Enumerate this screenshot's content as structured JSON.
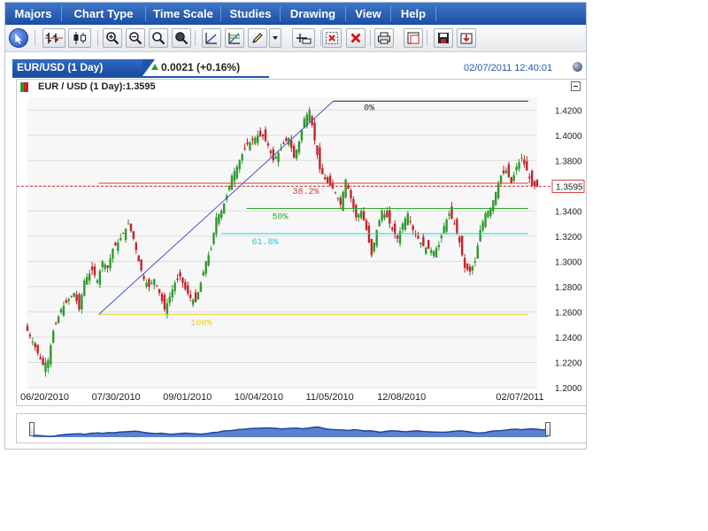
{
  "menu": [
    "Majors",
    "Chart Type",
    "Time Scale",
    "Studies",
    "Drawing",
    "View",
    "Help"
  ],
  "toolbar": {
    "buttons": [
      "pointer-icon",
      "bar-chart-icon",
      "candlestick-icon",
      "zoom-in-icon",
      "zoom-out-icon",
      "zoom-fit-icon",
      "zoom-reset-icon",
      "trendline-icon",
      "fibonacci-icon",
      "pencil-icon",
      "dropdown-arrow-icon",
      "crosshair-icon",
      "delete-drawing-icon",
      "delete-all-icon",
      "print-icon",
      "popout-icon",
      "save-icon",
      "load-icon"
    ]
  },
  "header": {
    "tab_title": "EUR/USD (1 Day)",
    "change": "0.0021 (+0.16%)",
    "timestamp": "02/07/2011 12:40:01"
  },
  "legend": "EUR / USD (1 Day):1.3595",
  "colors": {
    "accent": "#1f55ab",
    "up": "#2d9a2d",
    "down": "#c4242a",
    "trendline": "#4a56c8",
    "fib_0": "#222222",
    "fib_382": "#d04040",
    "fib_50": "#2ea82e",
    "fib_618": "#30c8c8",
    "fib_100": "#e8d020",
    "navigator_fill": "#5b82d0"
  },
  "chart_data": {
    "type": "candlestick",
    "symbol": "EUR/USD",
    "ylim": [
      1.2,
      1.43
    ],
    "y_ticks": [
      "1.4200",
      "1.4000",
      "1.3800",
      "1.3600",
      "1.3400",
      "1.3200",
      "1.3000",
      "1.2800",
      "1.2600",
      "1.2400",
      "1.2200",
      "1.2000"
    ],
    "x_ticks": [
      "06/20/2010",
      "07/30/2010",
      "09/01/2010",
      "10/04/2010",
      "11/05/2010",
      "12/08/2010",
      "02/07/2011"
    ],
    "last_price": "1.3595",
    "close_path": [
      [
        0,
        1.245
      ],
      [
        3,
        1.232
      ],
      [
        6,
        1.218
      ],
      [
        8,
        1.222
      ],
      [
        10,
        1.245
      ],
      [
        13,
        1.262
      ],
      [
        16,
        1.27
      ],
      [
        18,
        1.275
      ],
      [
        20,
        1.262
      ],
      [
        22,
        1.285
      ],
      [
        25,
        1.293
      ],
      [
        27,
        1.285
      ],
      [
        29,
        1.3
      ],
      [
        31,
        1.295
      ],
      [
        33,
        1.31
      ],
      [
        35,
        1.315
      ],
      [
        37,
        1.322
      ],
      [
        39,
        1.33
      ],
      [
        41,
        1.318
      ],
      [
        43,
        1.3
      ],
      [
        45,
        1.286
      ],
      [
        47,
        1.28
      ],
      [
        49,
        1.286
      ],
      [
        51,
        1.275
      ],
      [
        53,
        1.262
      ],
      [
        55,
        1.272
      ],
      [
        57,
        1.283
      ],
      [
        59,
        1.288
      ],
      [
        61,
        1.278
      ],
      [
        63,
        1.271
      ],
      [
        65,
        1.268
      ],
      [
        67,
        1.283
      ],
      [
        69,
        1.3
      ],
      [
        71,
        1.31
      ],
      [
        73,
        1.335
      ],
      [
        75,
        1.34
      ],
      [
        77,
        1.352
      ],
      [
        79,
        1.368
      ],
      [
        81,
        1.375
      ],
      [
        83,
        1.385
      ],
      [
        85,
        1.393
      ],
      [
        87,
        1.396
      ],
      [
        89,
        1.4
      ],
      [
        91,
        1.399
      ],
      [
        93,
        1.392
      ],
      [
        95,
        1.38
      ],
      [
        97,
        1.386
      ],
      [
        99,
        1.393
      ],
      [
        101,
        1.398
      ],
      [
        103,
        1.382
      ],
      [
        105,
        1.395
      ],
      [
        107,
        1.413
      ],
      [
        109,
        1.42
      ],
      [
        111,
        1.396
      ],
      [
        113,
        1.373
      ],
      [
        115,
        1.365
      ],
      [
        117,
        1.36
      ],
      [
        119,
        1.355
      ],
      [
        121,
        1.345
      ],
      [
        123,
        1.365
      ],
      [
        125,
        1.35
      ],
      [
        127,
        1.335
      ],
      [
        129,
        1.34
      ],
      [
        131,
        1.325
      ],
      [
        133,
        1.305
      ],
      [
        135,
        1.325
      ],
      [
        137,
        1.34
      ],
      [
        139,
        1.335
      ],
      [
        141,
        1.325
      ],
      [
        143,
        1.318
      ],
      [
        145,
        1.33
      ],
      [
        147,
        1.338
      ],
      [
        149,
        1.325
      ],
      [
        151,
        1.318
      ],
      [
        153,
        1.312
      ],
      [
        155,
        1.31
      ],
      [
        157,
        1.308
      ],
      [
        159,
        1.313
      ],
      [
        161,
        1.328
      ],
      [
        163,
        1.338
      ],
      [
        165,
        1.33
      ],
      [
        167,
        1.315
      ],
      [
        169,
        1.295
      ],
      [
        171,
        1.292
      ],
      [
        173,
        1.3
      ],
      [
        175,
        1.325
      ],
      [
        177,
        1.338
      ],
      [
        179,
        1.342
      ],
      [
        181,
        1.355
      ],
      [
        183,
        1.368
      ],
      [
        185,
        1.372
      ],
      [
        187,
        1.362
      ],
      [
        189,
        1.375
      ],
      [
        191,
        1.382
      ],
      [
        193,
        1.372
      ],
      [
        195,
        1.36
      ],
      [
        197,
        1.3595
      ]
    ],
    "trendline": [
      [
        1.258,
        0.14
      ],
      [
        1.427,
        0.6
      ]
    ],
    "fibonacci": [
      {
        "label": "0%",
        "value": 1.427
      },
      {
        "label": "38.2%",
        "value": 1.362
      },
      {
        "label": "50%",
        "value": 1.342
      },
      {
        "label": "61.8%",
        "value": 1.322
      },
      {
        "label": "100%",
        "value": 1.258
      }
    ]
  }
}
